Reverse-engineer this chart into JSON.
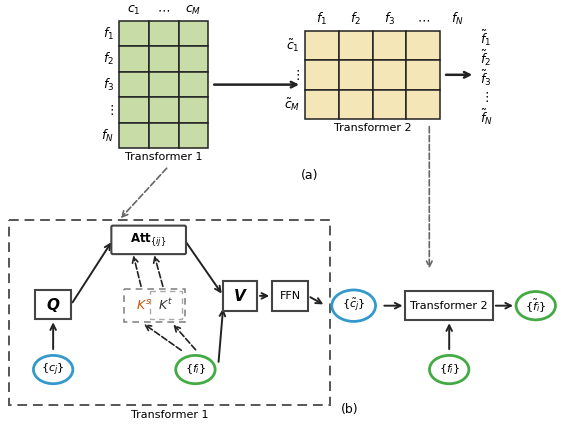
{
  "fig_width": 5.7,
  "fig_height": 4.24,
  "dpi": 100,
  "bg_color": "#ffffff",
  "green_cell_color": "#c8dca8",
  "tan_cell_color": "#f5e6b8",
  "cell_edge_color": "#222222",
  "blue_circle_color": "#3399cc",
  "green_circle_color": "#44aa44",
  "orange_text_color": "#cc5500",
  "box_edge_color": "#444444",
  "dashed_box_color": "#555555",
  "label_a": "(a)",
  "label_b": "(b)",
  "transformer1_label": "Transformer 1",
  "transformer2_label_top": "Transformer 2",
  "transformer2_label_bottom": "Transformer 2"
}
